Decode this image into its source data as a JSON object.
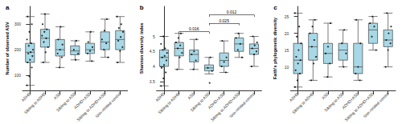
{
  "chart_data": [
    {
      "type": "boxplot",
      "title": "a",
      "y_label": "Number of observed ASV",
      "categories": [
        "ADHD",
        "Sibling to ADHD",
        "ASD",
        "Sibling to ASD",
        "ADHD+ASD",
        "Sibling to ADHD+ASD",
        "Non-related control"
      ],
      "boxes": [
        [
          60,
          150,
          190,
          225,
          330
        ],
        [
          150,
          210,
          245,
          280,
          340
        ],
        [
          130,
          175,
          200,
          240,
          290
        ],
        [
          160,
          180,
          195,
          215,
          235
        ],
        [
          155,
          185,
          200,
          225,
          270
        ],
        [
          170,
          200,
          230,
          270,
          320
        ],
        [
          150,
          200,
          240,
          275,
          330
        ]
      ],
      "points": [
        [
          60,
          95,
          130,
          150,
          160,
          175,
          185,
          190,
          200,
          215,
          225,
          240,
          270,
          300,
          330
        ],
        [
          150,
          190,
          210,
          230,
          245,
          255,
          270,
          280,
          300,
          340
        ],
        [
          130,
          170,
          185,
          200,
          220,
          240,
          290
        ],
        [
          160,
          185,
          200,
          235
        ],
        [
          155,
          185,
          195,
          210,
          230,
          270
        ],
        [
          170,
          200,
          225,
          240,
          275,
          320
        ],
        [
          150,
          195,
          210,
          235,
          250,
          270,
          285,
          300,
          330
        ]
      ],
      "ylim": [
        40,
        370
      ],
      "yticks": [
        100,
        200,
        300
      ],
      "color": "#a8d8e6"
    },
    {
      "type": "boxplot",
      "title": "b",
      "y_label": "Shannon diversity index",
      "categories": [
        "ADHD",
        "Sibling to ADHD",
        "ASD",
        "Sibling to ASD",
        "ADHD+ASD",
        "Sibling to ADHD+ASD",
        "Non-related control"
      ],
      "boxes": [
        [
          3.35,
          4.0,
          4.3,
          4.55,
          5.0
        ],
        [
          3.9,
          4.35,
          4.6,
          4.8,
          5.1
        ],
        [
          3.9,
          4.15,
          4.4,
          4.55,
          4.9
        ],
        [
          3.75,
          3.85,
          3.95,
          4.05,
          4.3
        ],
        [
          3.8,
          4.0,
          4.2,
          4.45,
          4.85
        ],
        [
          4.3,
          4.5,
          4.75,
          4.95,
          5.1
        ],
        [
          4.0,
          4.4,
          4.6,
          4.75,
          5.0
        ]
      ],
      "points": [
        [
          3.35,
          3.6,
          3.8,
          3.95,
          4.05,
          4.2,
          4.3,
          4.35,
          4.45,
          4.55,
          4.6,
          4.75,
          5.0
        ],
        [
          3.9,
          4.3,
          4.45,
          4.6,
          4.7,
          4.8,
          4.95,
          5.1
        ],
        [
          3.9,
          4.2,
          4.4,
          4.5,
          4.9
        ],
        [
          3.45,
          3.85,
          3.95,
          4.3
        ],
        [
          3.8,
          4.0,
          4.15,
          4.3,
          4.85
        ],
        [
          4.3,
          4.55,
          4.75,
          4.95,
          5.1
        ],
        [
          4.0,
          4.4,
          4.5,
          4.6,
          4.7,
          4.8,
          5.0
        ]
      ],
      "annotations": [
        {
          "from": "Sibling to ADHD",
          "to": "Sibling to ASD",
          "label": "0.016"
        },
        {
          "from": "Sibling to ASD",
          "to": "Sibling to ADHD+ASD",
          "label": "0.025"
        },
        {
          "from": "Sibling to ASD",
          "to": "Non-related control",
          "label": "0.012"
        }
      ],
      "ylim": [
        3.2,
        6.0
      ],
      "yticks": [
        3.5,
        4.0,
        4.5,
        5.0
      ],
      "color": "#a8d8e6"
    },
    {
      "type": "boxplot",
      "title": "c",
      "y_label": "Faith's phylogenetic diversity",
      "categories": [
        "ADHD",
        "Sibling to ADHD",
        "ASD",
        "Sibling to ASD",
        "ADHD+ASD",
        "Sibling to ADHD+ASD",
        "Non-related control"
      ],
      "boxes": [
        [
          4,
          8,
          12,
          17,
          26
        ],
        [
          6,
          12,
          16,
          20,
          24
        ],
        [
          7,
          11,
          14,
          17,
          23
        ],
        [
          10,
          12,
          15,
          17,
          21
        ],
        [
          6,
          8,
          10,
          17,
          24
        ],
        [
          15,
          17,
          21,
          23,
          25
        ],
        [
          10,
          16,
          18,
          21,
          26
        ]
      ],
      "points": [
        [
          4,
          6,
          8,
          9,
          11,
          12,
          13,
          15,
          17,
          19,
          22,
          26
        ],
        [
          6,
          11,
          13,
          16,
          18,
          20,
          22,
          24
        ],
        [
          7,
          11,
          14,
          16,
          23
        ],
        [
          10,
          14,
          17,
          21
        ],
        [
          6,
          8,
          10,
          17,
          24
        ],
        [
          15,
          19,
          22,
          23,
          25
        ],
        [
          10,
          15,
          17,
          18,
          20,
          22,
          26
        ]
      ],
      "ylim": [
        3,
        28
      ],
      "yticks": [
        10,
        15,
        20,
        25
      ],
      "color": "#a8d8e6"
    }
  ]
}
